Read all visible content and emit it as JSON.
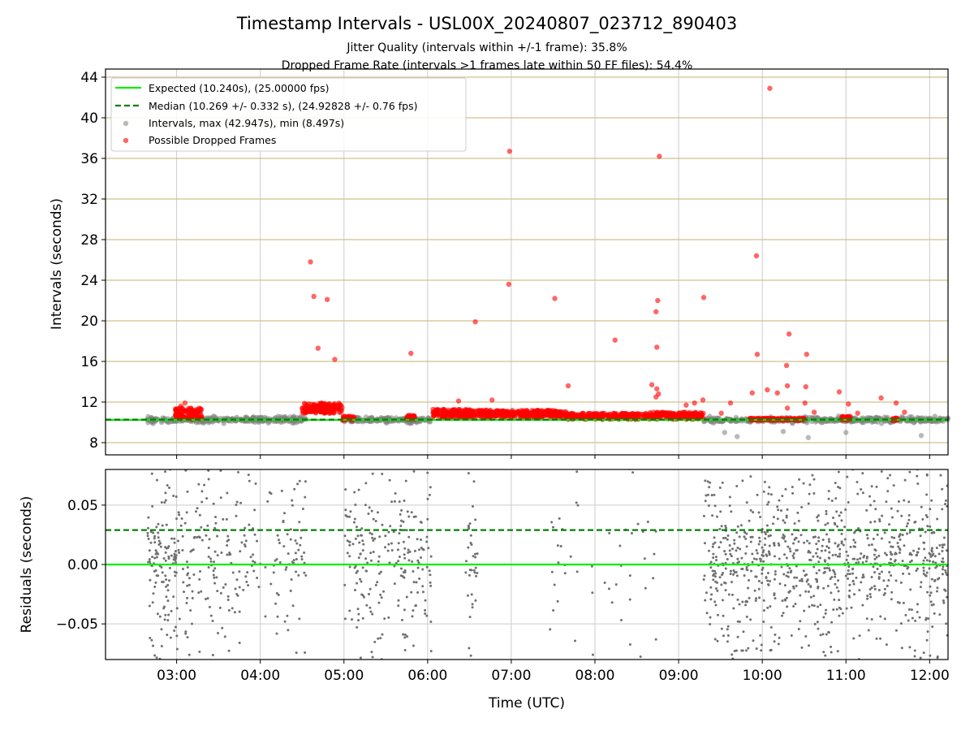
{
  "chart_data": [
    {
      "type": "scatter",
      "title": "Timestamp Intervals - USL00X_20240807_023712_890403",
      "subtitle_1": "Jitter Quality (intervals within +/-1 frame): 35.8%",
      "subtitle_2": "Dropped Frame Rate (intervals >1 frames late within 50 FF files): 54.4%",
      "xlabel": "",
      "ylabel": "Intervals (seconds)",
      "xlim_hours": [
        2.15,
        12.22
      ],
      "ylim": [
        6.8,
        44.8
      ],
      "y_ticks": [
        8,
        12,
        16,
        20,
        24,
        28,
        32,
        36,
        40,
        44
      ],
      "y_tick_labels": [
        "8",
        "12",
        "16",
        "20",
        "24",
        "28",
        "32",
        "36",
        "40",
        "44"
      ],
      "grid": true,
      "legend_position": "top-left",
      "legend": [
        "Expected (10.240s), (25.00000 fps)",
        "Median (10.269 +/- 0.332 s), (24.92828 +/- 0.76 fps)",
        "Intervals, max (42.947s), min (8.497s)",
        "Possible Dropped Frames"
      ],
      "series": [
        {
          "name": "Expected (10.240s), (25.00000 fps)",
          "kind": "hline",
          "y": 10.24,
          "color": "#00ee00",
          "style": "solid"
        },
        {
          "name": "Median (10.269 +/- 0.332 s), (24.92828 +/- 0.76 fps)",
          "kind": "hline",
          "y": 10.269,
          "color": "#008000",
          "style": "dashed"
        },
        {
          "name": "Intervals, max (42.947s), min (8.497s)",
          "kind": "scatter",
          "color": "#808080",
          "baseline_segments": [
            [
              2.65,
              4.55
            ],
            [
              5.0,
              6.05
            ],
            [
              9.3,
              12.22
            ]
          ],
          "min_points": [
            [
              9.7,
              8.6
            ],
            [
              10.55,
              8.5
            ],
            [
              11.9,
              8.7
            ],
            [
              9.55,
              9.0
            ],
            [
              10.25,
              9.1
            ],
            [
              11.0,
              9.0
            ]
          ]
        },
        {
          "name": "Possible Dropped Frames",
          "kind": "scatter",
          "color": "#ff0000",
          "clusters": [
            {
              "x": [
                2.98,
                3.3
              ],
              "y": [
                10.3,
                11.4
              ]
            },
            {
              "x": [
                4.5,
                4.98
              ],
              "y": [
                10.9,
                11.9
              ]
            },
            {
              "x": [
                4.98,
                5.12
              ],
              "y": [
                10.2,
                10.6
              ]
            },
            {
              "x": [
                5.75,
                5.85
              ],
              "y": [
                10.3,
                10.7
              ]
            },
            {
              "x": [
                6.05,
                6.55
              ],
              "y": [
                10.4,
                11.3
              ]
            },
            {
              "x": [
                6.55,
                7.65
              ],
              "y": [
                10.5,
                11.2
              ]
            },
            {
              "x": [
                7.65,
                8.65
              ],
              "y": [
                10.3,
                10.9
              ]
            },
            {
              "x": [
                8.65,
                9.3
              ],
              "y": [
                10.3,
                11.0
              ]
            },
            {
              "x": [
                9.85,
                10.5
              ],
              "y": [
                10.2,
                10.4
              ]
            },
            {
              "x": [
                10.95,
                11.05
              ],
              "y": [
                10.2,
                10.6
              ]
            },
            {
              "x": [
                11.55,
                11.62
              ],
              "y": [
                10.2,
                10.4
              ]
            }
          ],
          "outliers": [
            [
              3.1,
              11.9
            ],
            [
              3.05,
              11.6
            ],
            [
              4.6,
              25.8
            ],
            [
              4.64,
              22.4
            ],
            [
              4.8,
              22.1
            ],
            [
              4.69,
              17.3
            ],
            [
              4.89,
              16.2
            ],
            [
              5.8,
              16.8
            ],
            [
              6.37,
              12.1
            ],
            [
              6.57,
              19.9
            ],
            [
              6.77,
              12.2
            ],
            [
              6.98,
              36.7
            ],
            [
              6.97,
              23.6
            ],
            [
              7.52,
              22.2
            ],
            [
              7.68,
              13.6
            ],
            [
              8.24,
              18.1
            ],
            [
              8.68,
              13.7
            ],
            [
              8.73,
              12.5
            ],
            [
              8.74,
              13.3
            ],
            [
              8.73,
              20.9
            ],
            [
              8.75,
              22.0
            ],
            [
              8.74,
              17.4
            ],
            [
              8.77,
              36.2
            ],
            [
              8.76,
              12.8
            ],
            [
              9.09,
              11.7
            ],
            [
              9.19,
              11.9
            ],
            [
              9.29,
              12.2
            ],
            [
              9.3,
              22.3
            ],
            [
              9.51,
              10.9
            ],
            [
              9.62,
              11.9
            ],
            [
              9.88,
              12.9
            ],
            [
              9.93,
              26.4
            ],
            [
              9.94,
              16.7
            ],
            [
              10.06,
              13.2
            ],
            [
              10.09,
              42.9
            ],
            [
              10.29,
              15.6
            ],
            [
              10.3,
              13.6
            ],
            [
              10.32,
              18.7
            ],
            [
              10.3,
              11.4
            ],
            [
              10.18,
              12.9
            ],
            [
              10.53,
              16.7
            ],
            [
              10.52,
              13.5
            ],
            [
              10.51,
              11.9
            ],
            [
              10.62,
              11.0
            ],
            [
              10.92,
              13.0
            ],
            [
              11.03,
              11.8
            ],
            [
              11.14,
              10.9
            ],
            [
              11.42,
              12.4
            ],
            [
              11.6,
              11.9
            ],
            [
              11.7,
              11.0
            ]
          ]
        }
      ]
    },
    {
      "type": "scatter",
      "xlabel": "Time (UTC)",
      "ylabel": "Residuals (seconds)",
      "xlim_hours": [
        2.15,
        12.22
      ],
      "ylim": [
        -0.08,
        0.08
      ],
      "y_ticks": [
        -0.05,
        0.0,
        0.05
      ],
      "y_tick_labels": [
        "−0.05",
        "0.00",
        "0.05"
      ],
      "x_ticks_hours": [
        3,
        4,
        5,
        6,
        7,
        8,
        9,
        10,
        11,
        12
      ],
      "x_tick_labels": [
        "03:00",
        "04:00",
        "05:00",
        "06:00",
        "07:00",
        "08:00",
        "09:00",
        "10:00",
        "11:00",
        "12:00"
      ],
      "grid": true,
      "series": [
        {
          "kind": "hline",
          "y": 0.0,
          "color": "#00ee00",
          "style": "solid"
        },
        {
          "kind": "hline",
          "y": 0.029,
          "color": "#008000",
          "style": "dashed"
        },
        {
          "kind": "scatter",
          "color": "#808080",
          "density_segments": [
            {
              "x": [
                2.65,
                3.0
              ],
              "n": 130,
              "spread": 0.03
            },
            {
              "x": [
                3.0,
                4.55
              ],
              "n": 240,
              "spread": 0.05
            },
            {
              "x": [
                5.0,
                6.05
              ],
              "n": 230,
              "spread": 0.05
            },
            {
              "x": [
                6.45,
                6.6
              ],
              "n": 35,
              "spread": 0.06
            },
            {
              "x": [
                7.45,
                7.8
              ],
              "n": 20,
              "spread": 0.06
            },
            {
              "x": [
                7.95,
                8.75
              ],
              "n": 30,
              "spread": 0.06
            },
            {
              "x": [
                9.3,
                12.22
              ],
              "n": 880,
              "spread": 0.04
            }
          ]
        }
      ]
    }
  ]
}
